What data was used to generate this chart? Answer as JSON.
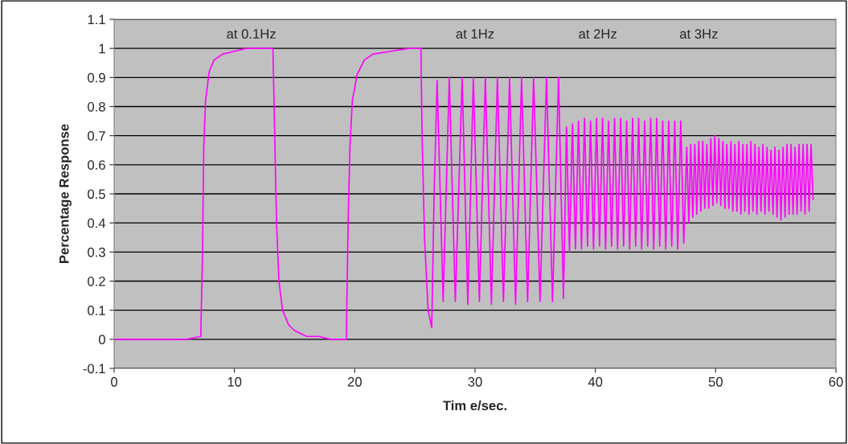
{
  "chart_data": {
    "type": "line",
    "xlabel": "Tim e/sec.",
    "ylabel": "Percentage Response",
    "xlim": [
      0,
      60
    ],
    "xticks": [
      0,
      10,
      20,
      30,
      40,
      50,
      60
    ],
    "ylim": [
      -0.1,
      1.1
    ],
    "yticks": [
      -0.1,
      0,
      0.1,
      0.2,
      0.3,
      0.4,
      0.5,
      0.6,
      0.7,
      0.8,
      0.9,
      1,
      1.1
    ],
    "grid": "y",
    "marker": "none",
    "line_style": "solid",
    "annotations": [
      "at 0.1Hz",
      "at 1Hz",
      "at 2Hz",
      "at 3Hz"
    ],
    "series": [
      {
        "color": "#ff00ff",
        "x": [
          0,
          2,
          4,
          6,
          7.2,
          7.35,
          7.45,
          7.6,
          7.9,
          8.3,
          9,
          10,
          11,
          12,
          13.2,
          13.35,
          13.5,
          13.7,
          14,
          14.5,
          15,
          16,
          17,
          18,
          19.3,
          19.45,
          19.6,
          19.8,
          20.2,
          20.8,
          21.5,
          23,
          24.5,
          25.5,
          25.6,
          25.8,
          26.1,
          26.4,
          26.6,
          26.85,
          27.35,
          27.86,
          28.36,
          28.93,
          29.4,
          29.86,
          30.36,
          30.86,
          31.36,
          31.86,
          32.36,
          32.87,
          33.37,
          33.87,
          34.37,
          34.87,
          35.4,
          35.94,
          36.44,
          36.94,
          37.35,
          37.6,
          37.85,
          38.1,
          38.35,
          38.6,
          38.85,
          39.1,
          39.35,
          39.6,
          39.85,
          40.1,
          40.35,
          40.6,
          40.85,
          41.1,
          41.35,
          41.6,
          41.85,
          42.1,
          42.35,
          42.6,
          42.85,
          43.1,
          43.35,
          43.6,
          43.85,
          44.1,
          44.35,
          44.6,
          44.85,
          45.1,
          45.35,
          45.6,
          45.85,
          46.1,
          46.35,
          46.6,
          46.85,
          47.1,
          47.35,
          47.6,
          47.77,
          47.93,
          48.1,
          48.27,
          48.43,
          48.6,
          48.77,
          48.93,
          49.1,
          49.27,
          49.43,
          49.6,
          49.77,
          49.93,
          50.1,
          50.27,
          50.43,
          50.6,
          50.77,
          50.93,
          51.1,
          51.27,
          51.43,
          51.6,
          51.77,
          51.93,
          52.1,
          52.27,
          52.43,
          52.6,
          52.77,
          52.93,
          53.1,
          53.27,
          53.43,
          53.6,
          53.77,
          53.93,
          54.1,
          54.27,
          54.43,
          54.6,
          54.77,
          54.93,
          55.1,
          55.27,
          55.43,
          55.6,
          55.77,
          55.93,
          56.1,
          56.27,
          56.43,
          56.6,
          56.77,
          56.93,
          57.1,
          57.27,
          57.43,
          57.6,
          57.77,
          57.93,
          58.1
        ],
        "values": [
          0,
          0,
          0,
          0,
          0.01,
          0.3,
          0.66,
          0.82,
          0.92,
          0.96,
          0.98,
          0.99,
          1,
          1,
          1,
          0.7,
          0.4,
          0.2,
          0.1,
          0.05,
          0.03,
          0.01,
          0.01,
          0,
          0,
          0.4,
          0.66,
          0.82,
          0.91,
          0.96,
          0.98,
          0.99,
          1,
          1,
          0.7,
          0.35,
          0.1,
          0.04,
          0.5,
          0.89,
          0.13,
          0.9,
          0.13,
          0.9,
          0.12,
          0.9,
          0.13,
          0.9,
          0.12,
          0.9,
          0.13,
          0.9,
          0.12,
          0.9,
          0.13,
          0.9,
          0.13,
          0.9,
          0.13,
          0.9,
          0.14,
          0.73,
          0.3,
          0.74,
          0.31,
          0.75,
          0.31,
          0.76,
          0.32,
          0.75,
          0.31,
          0.76,
          0.32,
          0.76,
          0.31,
          0.75,
          0.32,
          0.76,
          0.31,
          0.76,
          0.32,
          0.75,
          0.31,
          0.76,
          0.32,
          0.76,
          0.31,
          0.75,
          0.32,
          0.76,
          0.31,
          0.76,
          0.32,
          0.75,
          0.31,
          0.75,
          0.32,
          0.75,
          0.31,
          0.75,
          0.33,
          0.66,
          0.4,
          0.67,
          0.42,
          0.67,
          0.43,
          0.68,
          0.44,
          0.68,
          0.45,
          0.67,
          0.45,
          0.69,
          0.46,
          0.7,
          0.47,
          0.69,
          0.46,
          0.68,
          0.45,
          0.67,
          0.45,
          0.68,
          0.44,
          0.67,
          0.44,
          0.68,
          0.43,
          0.67,
          0.44,
          0.67,
          0.43,
          0.68,
          0.44,
          0.67,
          0.43,
          0.66,
          0.44,
          0.67,
          0.43,
          0.66,
          0.44,
          0.65,
          0.43,
          0.66,
          0.42,
          0.65,
          0.41,
          0.66,
          0.42,
          0.67,
          0.43,
          0.67,
          0.43,
          0.66,
          0.43,
          0.67,
          0.44,
          0.67,
          0.43,
          0.67,
          0.44,
          0.67,
          0.48
        ]
      }
    ]
  }
}
